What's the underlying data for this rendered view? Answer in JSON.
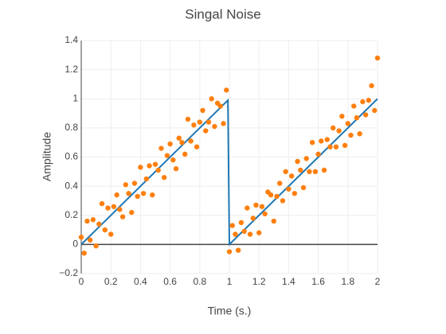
{
  "chart_data": {
    "type": "scatter",
    "title": "Singal Noise",
    "xlabel": "Time (s.)",
    "ylabel": "Amplitude",
    "xlim": [
      0,
      2
    ],
    "ylim": [
      -0.2,
      1.4
    ],
    "xticks": [
      0,
      0.2,
      0.4,
      0.6,
      0.8,
      1,
      1.2,
      1.4,
      1.6,
      1.8,
      2
    ],
    "yticks": [
      {
        "value": -0.2,
        "label": "−0.2"
      },
      0,
      0.2,
      0.4,
      0.6,
      0.8,
      1,
      1.2,
      1.4
    ],
    "grid": true,
    "series": [
      {
        "mode": "lines",
        "color": "#1f77b4",
        "x": [
          0,
          0.99,
          1,
          2
        ],
        "y": [
          0,
          0.99,
          0,
          1
        ]
      },
      {
        "mode": "markers",
        "color": "#ff7f0e",
        "x": [
          0,
          0.02,
          0.04,
          0.06,
          0.08,
          0.1,
          0.12,
          0.14,
          0.16,
          0.18,
          0.2,
          0.22,
          0.24,
          0.26,
          0.28,
          0.3,
          0.32,
          0.34,
          0.36,
          0.38,
          0.4,
          0.42,
          0.44,
          0.46,
          0.48,
          0.5,
          0.52,
          0.54,
          0.56,
          0.58,
          0.6,
          0.62,
          0.64,
          0.66,
          0.68,
          0.7,
          0.72,
          0.74,
          0.76,
          0.78,
          0.8,
          0.82,
          0.84,
          0.86,
          0.88,
          0.9,
          0.92,
          0.94,
          0.96,
          0.98,
          1,
          1.02,
          1.04,
          1.06,
          1.08,
          1.1,
          1.12,
          1.14,
          1.16,
          1.18,
          1.2,
          1.22,
          1.24,
          1.26,
          1.28,
          1.3,
          1.32,
          1.34,
          1.36,
          1.38,
          1.4,
          1.42,
          1.44,
          1.46,
          1.48,
          1.5,
          1.52,
          1.54,
          1.56,
          1.58,
          1.6,
          1.62,
          1.64,
          1.66,
          1.68,
          1.7,
          1.72,
          1.74,
          1.76,
          1.78,
          1.8,
          1.82,
          1.84,
          1.86,
          1.88,
          1.9,
          1.92,
          1.94,
          1.96,
          1.98,
          2
        ],
        "y": [
          0.05,
          -0.06,
          0.16,
          0.03,
          0.17,
          -0.01,
          0.14,
          0.28,
          0.1,
          0.25,
          0.07,
          0.26,
          0.34,
          0.24,
          0.19,
          0.41,
          0.35,
          0.22,
          0.42,
          0.33,
          0.53,
          0.35,
          0.45,
          0.54,
          0.34,
          0.55,
          0.51,
          0.66,
          0.46,
          0.61,
          0.69,
          0.58,
          0.52,
          0.73,
          0.7,
          0.62,
          0.86,
          0.71,
          0.82,
          0.67,
          0.84,
          0.92,
          0.78,
          0.84,
          1,
          0.81,
          0.97,
          0.95,
          0.83,
          1.06,
          -0.05,
          0.13,
          0.07,
          -0.04,
          0.15,
          0.09,
          0.25,
          0.07,
          0.18,
          0.27,
          0.08,
          0.26,
          0.21,
          0.36,
          0.34,
          0.16,
          0.33,
          0.42,
          0.3,
          0.5,
          0.38,
          0.47,
          0.35,
          0.57,
          0.51,
          0.39,
          0.59,
          0.5,
          0.7,
          0.5,
          0.62,
          0.71,
          0.51,
          0.72,
          0.67,
          0.8,
          0.67,
          0.78,
          0.88,
          0.68,
          0.83,
          0.75,
          0.95,
          0.87,
          0.76,
          0.98,
          0.89,
          0.99,
          1.09,
          0.92,
          1.28
        ]
      }
    ]
  }
}
